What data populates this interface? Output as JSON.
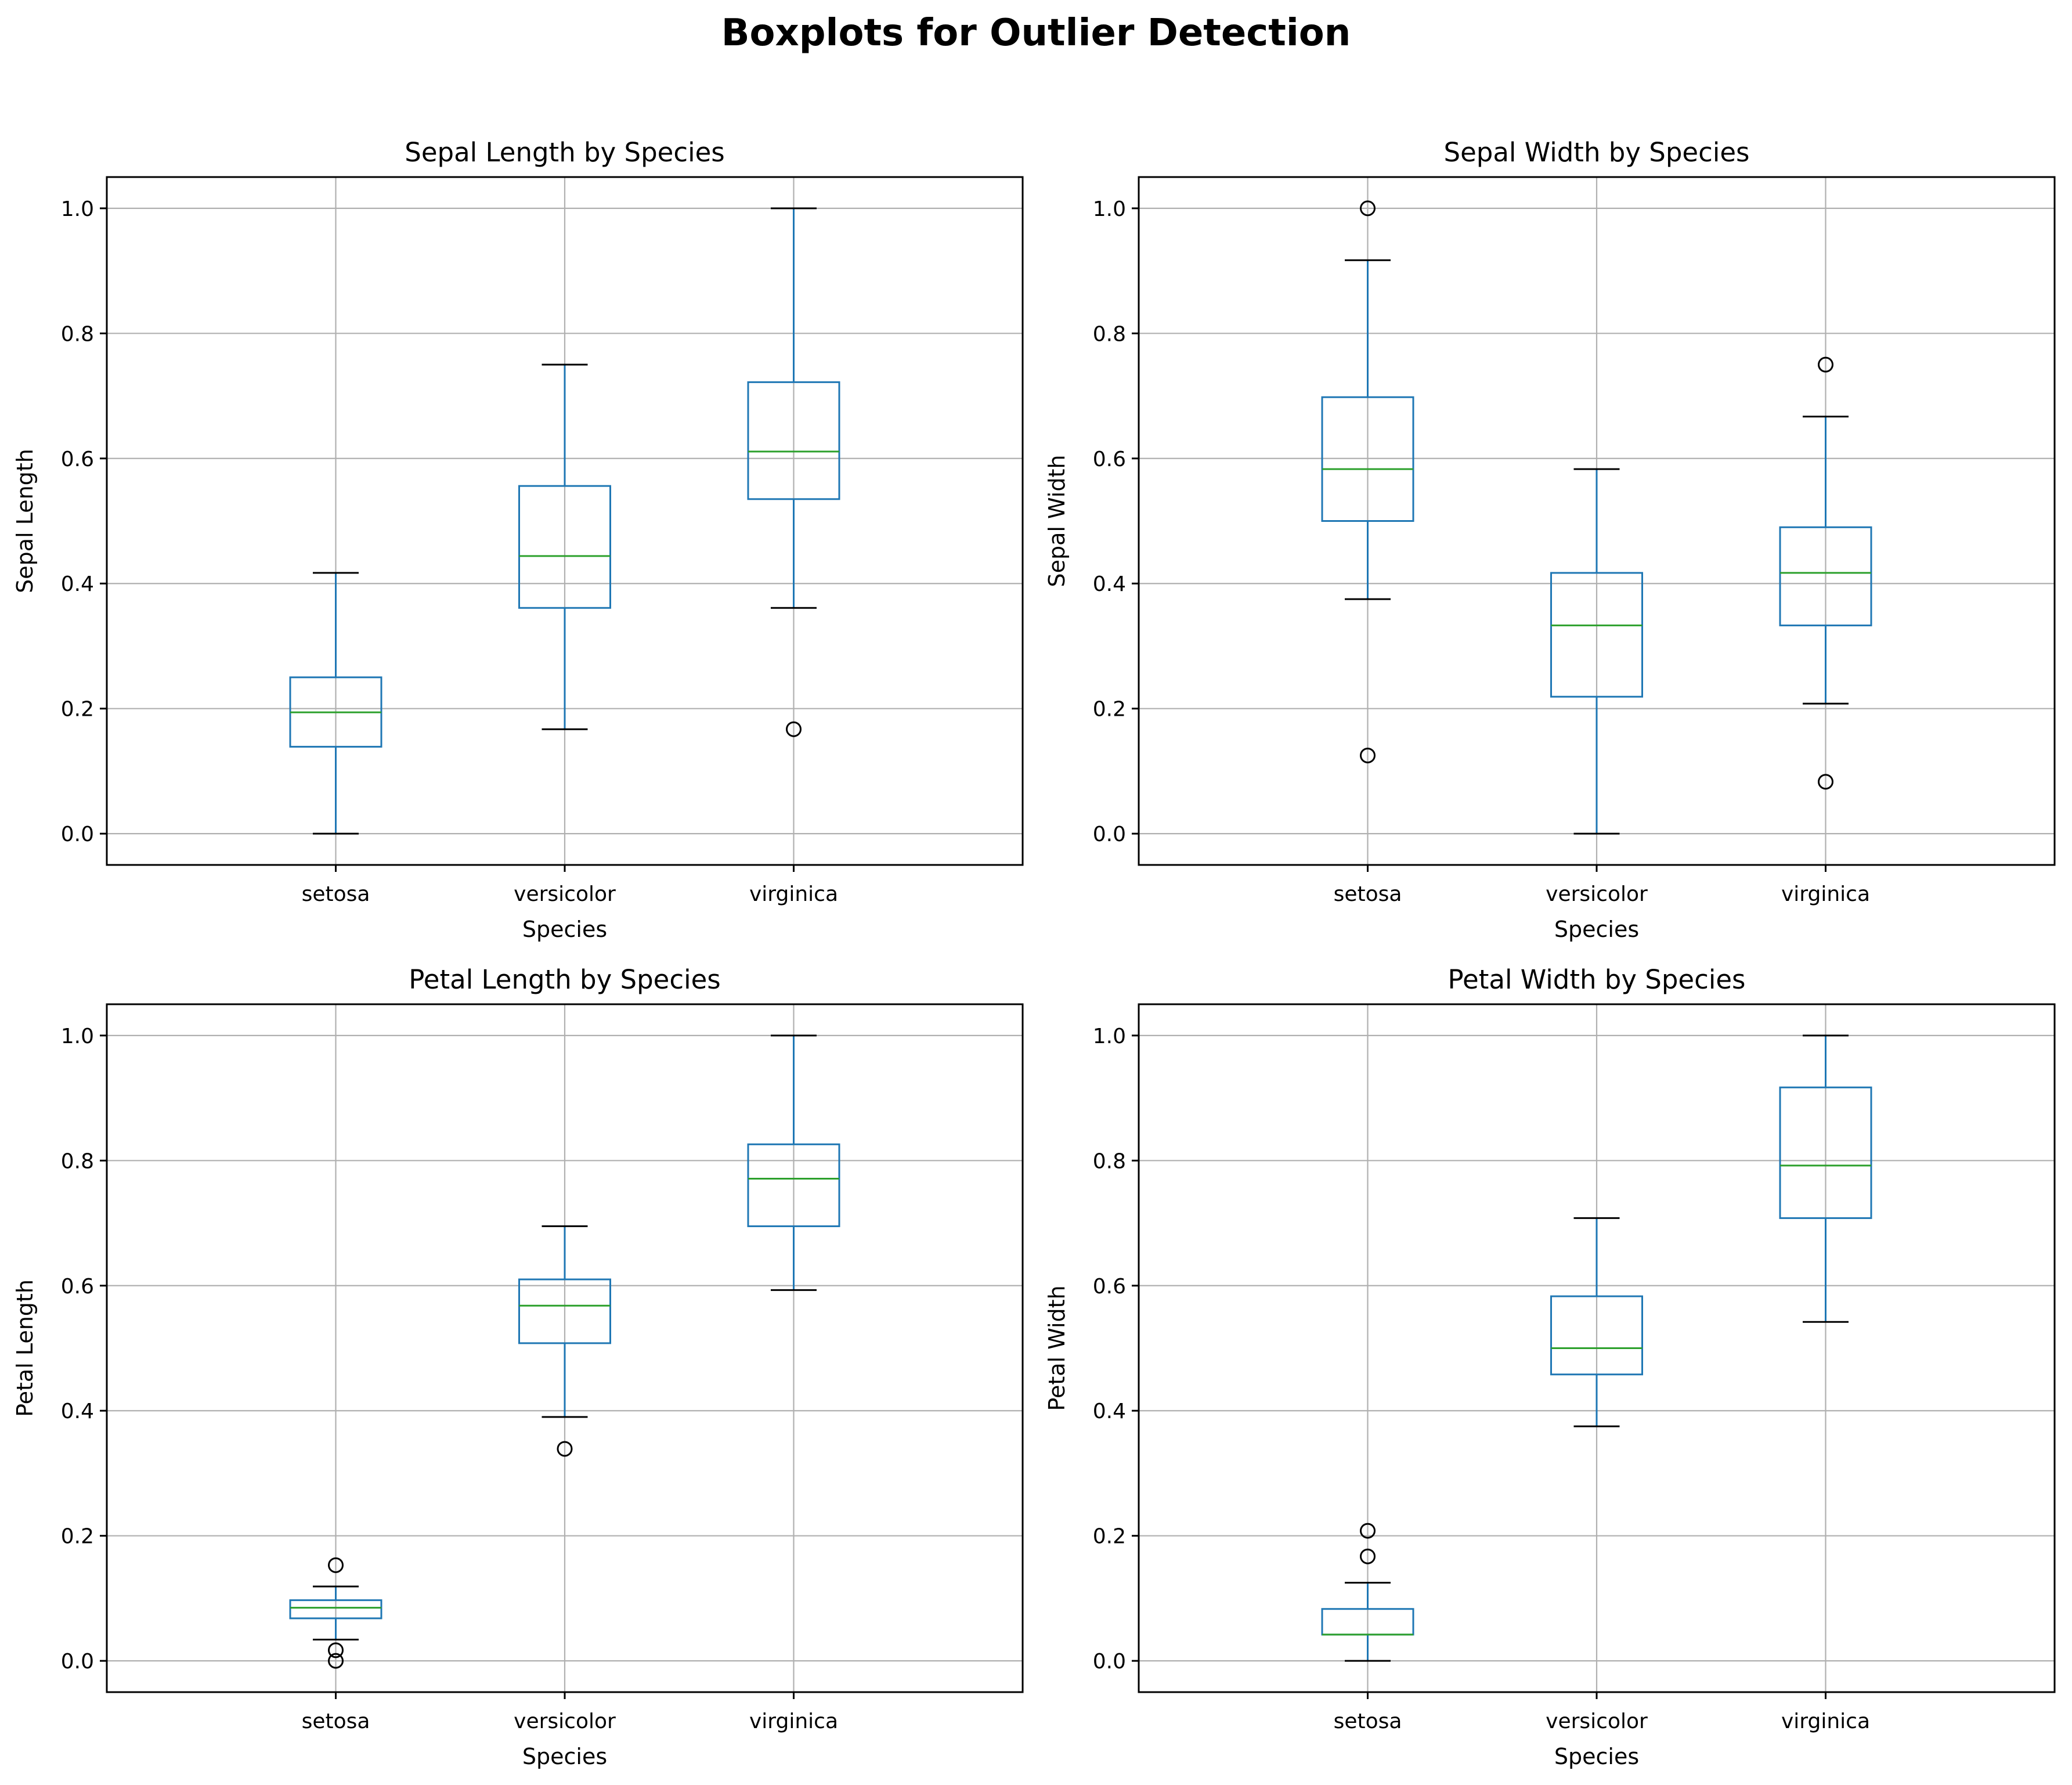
{
  "figure": {
    "title": "Boxplots for Outlier Detection"
  },
  "style": {
    "box_color": "#1f77b4",
    "median_color": "#2ca02c",
    "whisker_cap_color": "#000000",
    "grid_color": "#b0b0b0",
    "outlier_marker": "hollow-circle"
  },
  "chart_data": [
    {
      "type": "boxplot",
      "title": "Sepal Length by Species",
      "xlabel": "Species",
      "ylabel": "Sepal Length",
      "categories": [
        "setosa",
        "versicolor",
        "virginica"
      ],
      "ylim": [
        -0.05,
        1.05
      ],
      "yticks": [
        0.0,
        0.2,
        0.4,
        0.6,
        0.8,
        1.0
      ],
      "ytick_labels": [
        "0.0",
        "0.2",
        "0.4",
        "0.6",
        "0.8",
        "1.0"
      ],
      "grid": true,
      "boxes": [
        {
          "category": "setosa",
          "whisker_low": 0.0,
          "q1": 0.139,
          "median": 0.194,
          "q3": 0.25,
          "whisker_high": 0.417,
          "outliers": []
        },
        {
          "category": "versicolor",
          "whisker_low": 0.167,
          "q1": 0.361,
          "median": 0.444,
          "q3": 0.556,
          "whisker_high": 0.75,
          "outliers": []
        },
        {
          "category": "virginica",
          "whisker_low": 0.361,
          "q1": 0.535,
          "median": 0.611,
          "q3": 0.722,
          "whisker_high": 1.0,
          "outliers": [
            0.167
          ]
        }
      ]
    },
    {
      "type": "boxplot",
      "title": "Sepal Width by Species",
      "xlabel": "Species",
      "ylabel": "Sepal Width",
      "categories": [
        "setosa",
        "versicolor",
        "virginica"
      ],
      "ylim": [
        -0.05,
        1.05
      ],
      "yticks": [
        0.0,
        0.2,
        0.4,
        0.6,
        0.8,
        1.0
      ],
      "ytick_labels": [
        "0.0",
        "0.2",
        "0.4",
        "0.6",
        "0.8",
        "1.0"
      ],
      "grid": true,
      "boxes": [
        {
          "category": "setosa",
          "whisker_low": 0.375,
          "q1": 0.5,
          "median": 0.583,
          "q3": 0.698,
          "whisker_high": 0.917,
          "outliers": [
            1.0,
            0.125
          ]
        },
        {
          "category": "versicolor",
          "whisker_low": 0.0,
          "q1": 0.219,
          "median": 0.333,
          "q3": 0.417,
          "whisker_high": 0.583,
          "outliers": []
        },
        {
          "category": "virginica",
          "whisker_low": 0.208,
          "q1": 0.333,
          "median": 0.417,
          "q3": 0.49,
          "whisker_high": 0.667,
          "outliers": [
            0.75,
            0.083
          ]
        }
      ]
    },
    {
      "type": "boxplot",
      "title": "Petal Length by Species",
      "xlabel": "Species",
      "ylabel": "Petal Length",
      "categories": [
        "setosa",
        "versicolor",
        "virginica"
      ],
      "ylim": [
        -0.05,
        1.05
      ],
      "yticks": [
        0.0,
        0.2,
        0.4,
        0.6,
        0.8,
        1.0
      ],
      "ytick_labels": [
        "0.0",
        "0.2",
        "0.4",
        "0.6",
        "0.8",
        "1.0"
      ],
      "grid": true,
      "boxes": [
        {
          "category": "setosa",
          "whisker_low": 0.034,
          "q1": 0.068,
          "median": 0.085,
          "q3": 0.097,
          "whisker_high": 0.119,
          "outliers": [
            0.153,
            0.017,
            0.0
          ]
        },
        {
          "category": "versicolor",
          "whisker_low": 0.39,
          "q1": 0.508,
          "median": 0.568,
          "q3": 0.61,
          "whisker_high": 0.695,
          "outliers": [
            0.339
          ]
        },
        {
          "category": "virginica",
          "whisker_low": 0.593,
          "q1": 0.695,
          "median": 0.771,
          "q3": 0.826,
          "whisker_high": 1.0,
          "outliers": []
        }
      ]
    },
    {
      "type": "boxplot",
      "title": "Petal Width by Species",
      "xlabel": "Species",
      "ylabel": "Petal Width",
      "categories": [
        "setosa",
        "versicolor",
        "virginica"
      ],
      "ylim": [
        -0.05,
        1.05
      ],
      "yticks": [
        0.0,
        0.2,
        0.4,
        0.6,
        0.8,
        1.0
      ],
      "ytick_labels": [
        "0.0",
        "0.2",
        "0.4",
        "0.6",
        "0.8",
        "1.0"
      ],
      "grid": true,
      "boxes": [
        {
          "category": "setosa",
          "whisker_low": 0.0,
          "q1": 0.042,
          "median": 0.042,
          "q3": 0.083,
          "whisker_high": 0.125,
          "outliers": [
            0.208,
            0.167
          ]
        },
        {
          "category": "versicolor",
          "whisker_low": 0.375,
          "q1": 0.458,
          "median": 0.5,
          "q3": 0.583,
          "whisker_high": 0.708,
          "outliers": []
        },
        {
          "category": "virginica",
          "whisker_low": 0.542,
          "q1": 0.708,
          "median": 0.792,
          "q3": 0.917,
          "whisker_high": 1.0,
          "outliers": []
        }
      ]
    }
  ]
}
